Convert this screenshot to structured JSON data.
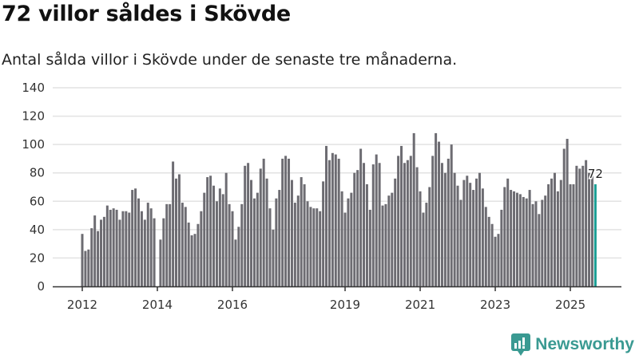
{
  "header": {
    "title": "72 villor såldes i Skövde",
    "subtitle": "Antal sålda villor i Skövde under de senaste tre månaderna."
  },
  "brand": {
    "name": "Newsworthy",
    "color": "#3a9a92"
  },
  "chart_data": {
    "type": "bar",
    "title": "72 villor såldes i Skövde",
    "subtitle": "Antal sålda villor i Skövde under de senaste tre månaderna.",
    "xlabel": "",
    "ylabel": "",
    "start_month": "2012-01",
    "frequency": "monthly",
    "ylim": [
      0,
      140
    ],
    "yticks": [
      0,
      20,
      40,
      60,
      80,
      100,
      120,
      140
    ],
    "xticks": [
      {
        "label": "2012",
        "month_index": 0
      },
      {
        "label": "2014",
        "month_index": 24
      },
      {
        "label": "2016",
        "month_index": 48
      },
      {
        "label": "2019",
        "month_index": 84
      },
      {
        "label": "2021",
        "month_index": 108
      },
      {
        "label": "2023",
        "month_index": 132
      },
      {
        "label": "2025",
        "month_index": 156
      }
    ],
    "grid": true,
    "bar_color": "#6d6c72",
    "highlight_color": "#1a9e94",
    "highlight_label": "72",
    "values": [
      37,
      25,
      26,
      41,
      50,
      39,
      47,
      49,
      57,
      54,
      55,
      54,
      47,
      53,
      53,
      52,
      68,
      69,
      62,
      53,
      47,
      59,
      55,
      48,
      0,
      33,
      48,
      58,
      58,
      88,
      76,
      79,
      59,
      56,
      45,
      36,
      37,
      44,
      53,
      66,
      77,
      78,
      71,
      60,
      69,
      65,
      80,
      58,
      53,
      33,
      42,
      58,
      85,
      87,
      75,
      62,
      66,
      83,
      90,
      76,
      55,
      40,
      62,
      68,
      90,
      92,
      90,
      75,
      59,
      64,
      77,
      72,
      60,
      56,
      55,
      55,
      53,
      74,
      99,
      89,
      94,
      93,
      90,
      67,
      52,
      62,
      66,
      80,
      82,
      97,
      87,
      72,
      54,
      86,
      93,
      87,
      57,
      58,
      64,
      66,
      76,
      92,
      99,
      87,
      89,
      92,
      108,
      84,
      67,
      52,
      59,
      70,
      92,
      108,
      102,
      87,
      80,
      90,
      100,
      80,
      71,
      61,
      75,
      78,
      73,
      68,
      76,
      80,
      69,
      56,
      49,
      44,
      35,
      37,
      54,
      70,
      76,
      68,
      67,
      66,
      65,
      63,
      62,
      68,
      58,
      60,
      51,
      61,
      64,
      72,
      76,
      80,
      67,
      75,
      97,
      104,
      72,
      72,
      85,
      83,
      85,
      89,
      80,
      79,
      72
    ]
  }
}
